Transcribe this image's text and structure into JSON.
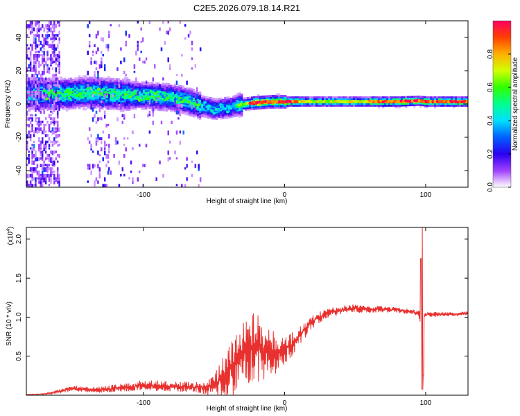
{
  "title": "C2E5.2026.079.18.14.R21",
  "chart_data": [
    {
      "type": "heatmap",
      "title": "C2E5.2026.079.18.14.R21",
      "xlabel": "Height of straight line (km)",
      "ylabel": "Frequency (Hz)",
      "xlim": [
        -183,
        130
      ],
      "ylim": [
        -50,
        50
      ],
      "x_ticks": [
        -100,
        0,
        100
      ],
      "y_ticks": [
        -40,
        -20,
        0,
        20,
        40
      ],
      "colorbar": {
        "label": "Normalized spectral amplitude",
        "range": [
          0,
          1
        ],
        "ticks": [
          "0.0",
          "0.2",
          "0.4",
          "0.6",
          "0.8"
        ],
        "tick_values": [
          0.0,
          0.2,
          0.4,
          0.6,
          0.8
        ]
      },
      "ridge_center_hz": [
        [
          -180,
          6
        ],
        [
          -160,
          6
        ],
        [
          -140,
          7
        ],
        [
          -120,
          6
        ],
        [
          -100,
          5
        ],
        [
          -80,
          4
        ],
        [
          -70,
          2
        ],
        [
          -60,
          -1
        ],
        [
          -50,
          -3
        ],
        [
          -40,
          -2
        ],
        [
          -30,
          0
        ],
        [
          -20,
          1
        ],
        [
          -10,
          1.5
        ],
        [
          0,
          1.5
        ],
        [
          20,
          1.5
        ],
        [
          50,
          1.5
        ],
        [
          80,
          1.5
        ],
        [
          95,
          2
        ],
        [
          100,
          1.5
        ],
        [
          130,
          1.5
        ]
      ]
    },
    {
      "type": "line",
      "xlabel": "Height of straight line (km)",
      "ylabel": "SNR (10 * v/v)",
      "yscale_label": "(x10",
      "yscale_exp": "4",
      "yscale_close": ")",
      "xlim": [
        -183,
        130
      ],
      "ylim": [
        0,
        21500
      ],
      "x_ticks": [
        -100,
        0,
        100
      ],
      "y_ticks": [
        5000,
        10000,
        15000,
        20000
      ],
      "y_tick_labels": [
        "0.5",
        "1.0",
        "1.5",
        "2.0"
      ],
      "color": "#e8312f",
      "series": [
        {
          "name": "SNR",
          "x": [
            -183,
            -170,
            -160,
            -150,
            -140,
            -130,
            -120,
            -110,
            -100,
            -90,
            -80,
            -70,
            -60,
            -50,
            -45,
            -40,
            -35,
            -30,
            -25,
            -20,
            -15,
            -10,
            -5,
            0,
            5,
            10,
            20,
            30,
            40,
            50,
            60,
            70,
            80,
            90,
            95,
            97,
            98,
            100,
            110,
            120,
            130
          ],
          "y": [
            100,
            150,
            500,
            900,
            700,
            700,
            900,
            1000,
            1300,
            1200,
            1100,
            1100,
            1000,
            1200,
            2000,
            3000,
            4000,
            5000,
            6000,
            6000,
            6000,
            5500,
            5500,
            5800,
            6500,
            7500,
            9500,
            10500,
            10900,
            11100,
            11000,
            11000,
            10900,
            10700,
            10500,
            11000,
            10300,
            10300,
            10400,
            10400,
            10500
          ],
          "amplitude": [
            30,
            60,
            250,
            400,
            350,
            400,
            500,
            550,
            700,
            700,
            650,
            700,
            700,
            1500,
            2500,
            3500,
            3800,
            4200,
            4500,
            4500,
            4000,
            3500,
            2500,
            1800,
            1600,
            1200,
            900,
            700,
            600,
            550,
            450,
            400,
            350,
            350,
            400,
            4000,
            400,
            350,
            300,
            250,
            250
          ]
        }
      ],
      "spike": {
        "x": 97.5,
        "max": 21500,
        "min": 700
      }
    }
  ]
}
